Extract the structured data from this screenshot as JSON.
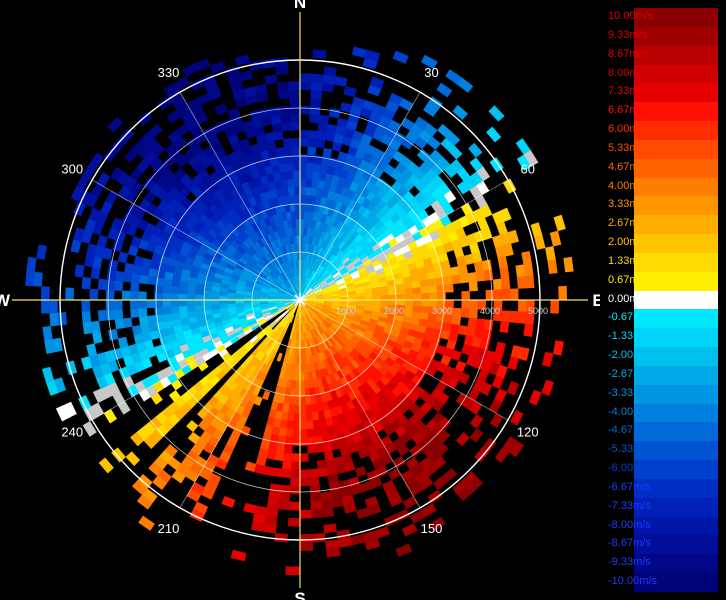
{
  "chart_data": {
    "type": "heatmap",
    "subtype": "polar radar radial-velocity (PPI)",
    "cardinals": [
      "N",
      "E",
      "S",
      "W"
    ],
    "azimuth_labels": [
      {
        "az": 30,
        "label": "30"
      },
      {
        "az": 60,
        "label": "60"
      },
      {
        "az": 120,
        "label": "120"
      },
      {
        "az": 150,
        "label": "150"
      },
      {
        "az": 210,
        "label": "210"
      },
      {
        "az": 240,
        "label": "240"
      },
      {
        "az": 300,
        "label": "300"
      },
      {
        "az": 330,
        "label": "330"
      }
    ],
    "range_rings": [
      1000,
      2000,
      3000,
      4000,
      5000
    ],
    "range_labels": [
      "1000",
      "2000",
      "3000",
      "4000",
      "5000"
    ],
    "range_max": 5000,
    "velocity_field": {
      "description_of_pattern": "dipole: approaching (negative) flow from north-west half, receding (positive) flow toward south-east; speed increases with range",
      "approaching_azimuth": 330,
      "receding_azimuth": 150,
      "max_speed": 10.0
    },
    "legend": {
      "unit": "m/s",
      "entries": [
        {
          "label": "10.00m/s",
          "value": 10.0,
          "color": "#8a0000"
        },
        {
          "label": "9.33m/s",
          "value": 9.33,
          "color": "#a00000"
        },
        {
          "label": "8.67m/s",
          "value": 8.67,
          "color": "#b80000"
        },
        {
          "label": "8.00m/s",
          "value": 8.0,
          "color": "#d00000"
        },
        {
          "label": "7.33m/s",
          "value": 7.33,
          "color": "#e60000"
        },
        {
          "label": "6.67m/s",
          "value": 6.67,
          "color": "#ff1000"
        },
        {
          "label": "6.00m/s",
          "value": 6.0,
          "color": "#ff2c00"
        },
        {
          "label": "5.33m/s",
          "value": 5.33,
          "color": "#ff4a00"
        },
        {
          "label": "4.67m/s",
          "value": 4.67,
          "color": "#ff6400"
        },
        {
          "label": "4.00m/s",
          "value": 4.0,
          "color": "#ff7e00"
        },
        {
          "label": "3.33m/s",
          "value": 3.33,
          "color": "#ff9600"
        },
        {
          "label": "2.67m/s",
          "value": 2.67,
          "color": "#ffae00"
        },
        {
          "label": "2.00m/s",
          "value": 2.0,
          "color": "#ffc400"
        },
        {
          "label": "1.33m/s",
          "value": 1.33,
          "color": "#ffda00"
        },
        {
          "label": "0.67m/s",
          "value": 0.67,
          "color": "#ffee00"
        },
        {
          "label": "0.00m/s",
          "value": 0.0,
          "color": "#ffffff"
        },
        {
          "label": "-0.67m/s",
          "value": -0.67,
          "color": "#00e8ff"
        },
        {
          "label": "-1.33m/s",
          "value": -1.33,
          "color": "#00d4f8"
        },
        {
          "label": "-2.00m/s",
          "value": -2.0,
          "color": "#00c0f0"
        },
        {
          "label": "-2.67m/s",
          "value": -2.67,
          "color": "#00aaea"
        },
        {
          "label": "-3.33m/s",
          "value": -3.33,
          "color": "#0096e4"
        },
        {
          "label": "-4.00m/s",
          "value": -4.0,
          "color": "#0080de"
        },
        {
          "label": "-4.67m/s",
          "value": -4.67,
          "color": "#006ad8"
        },
        {
          "label": "-5.33m/s",
          "value": -5.33,
          "color": "#0054d2"
        },
        {
          "label": "-6.00m/s",
          "value": -6.0,
          "color": "#0040cc"
        },
        {
          "label": "-6.67m/s",
          "value": -6.67,
          "color": "#002ec4"
        },
        {
          "label": "-7.33m/s",
          "value": -7.33,
          "color": "#0020b8"
        },
        {
          "label": "-8.00m/s",
          "value": -8.0,
          "color": "#0016a8"
        },
        {
          "label": "-8.67m/s",
          "value": -8.67,
          "color": "#000e98"
        },
        {
          "label": "-9.33m/s",
          "value": -9.33,
          "color": "#000888"
        },
        {
          "label": "-10.00m/s",
          "value": -10.0,
          "color": "#000478"
        }
      ]
    },
    "colors": {
      "background": "#000000",
      "grid": "#ffffff",
      "no_data_gray": "#c8c8c8"
    }
  }
}
